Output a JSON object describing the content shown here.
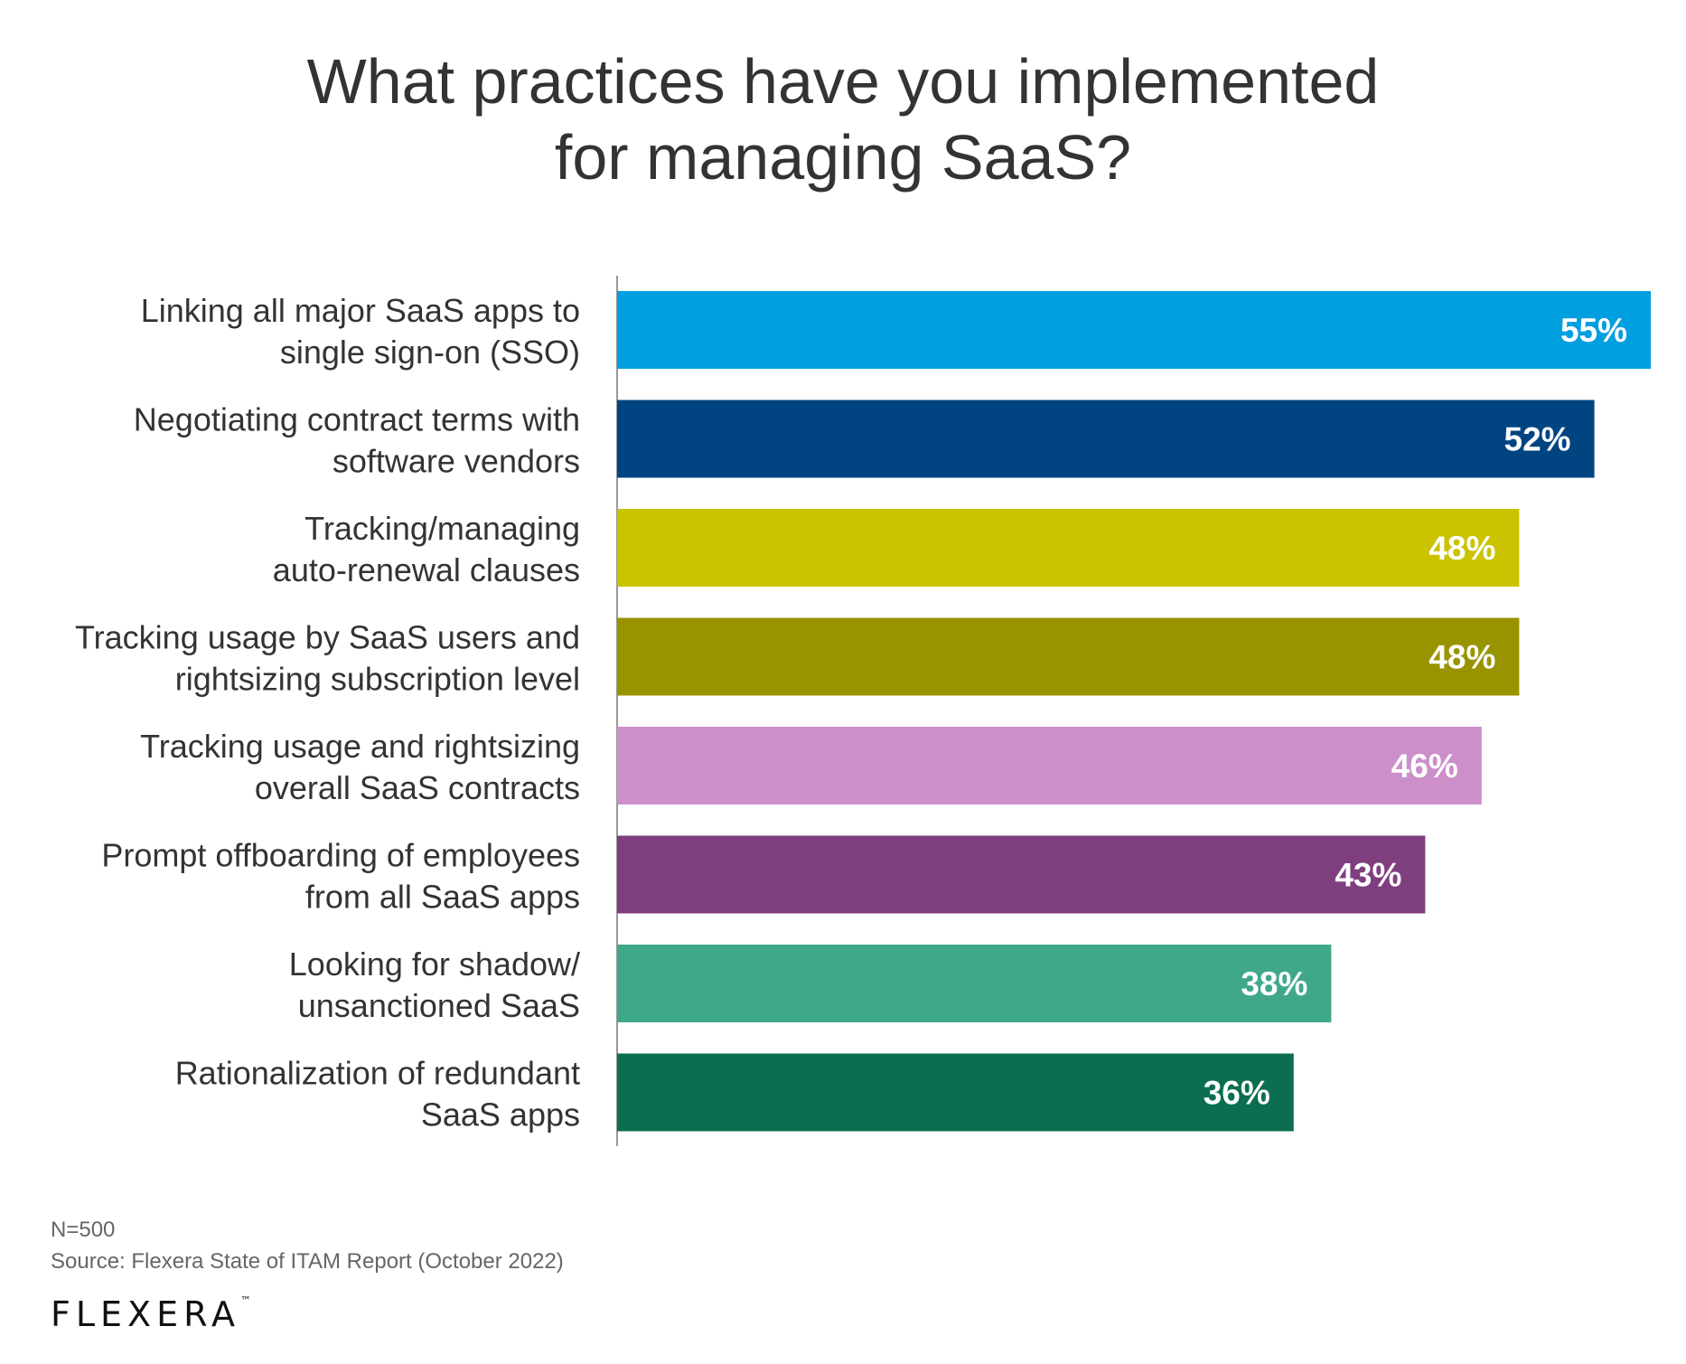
{
  "title_lines": [
    "What practices have you implemented",
    "for managing SaaS?"
  ],
  "chart_data": {
    "type": "bar",
    "orientation": "horizontal",
    "categories": [
      [
        "Linking all major SaaS apps to",
        "single sign-on (SSO)"
      ],
      [
        "Negotiating contract terms with",
        "software vendors"
      ],
      [
        "Tracking/managing",
        "auto-renewal clauses"
      ],
      [
        "Tracking usage by SaaS users and",
        "rightsizing subscription level"
      ],
      [
        "Tracking usage and rightsizing",
        "overall SaaS contracts"
      ],
      [
        "Prompt offboarding of employees",
        "from all SaaS apps"
      ],
      [
        "Looking for shadow/",
        "unsanctioned SaaS"
      ],
      [
        "Rationalization of redundant",
        "SaaS apps"
      ]
    ],
    "values": [
      55,
      52,
      48,
      48,
      46,
      43,
      38,
      36
    ],
    "value_labels": [
      "55%",
      "52%",
      "48%",
      "48%",
      "46%",
      "43%",
      "38%",
      "36%"
    ],
    "colors": [
      "#009FDF",
      "#004481",
      "#CBC300",
      "#989400",
      "#CC8FCA",
      "#7F3E7E",
      "#40A88A",
      "#0B6E50"
    ],
    "axis_color": "#999999",
    "xlim": [
      0,
      55
    ],
    "grid": false,
    "legend": "none"
  },
  "footnotes": [
    "N=500",
    "Source: Flexera State of ITAM Report (October 2022)"
  ],
  "logo_text": "FLEXERA",
  "logo_mark": "™"
}
